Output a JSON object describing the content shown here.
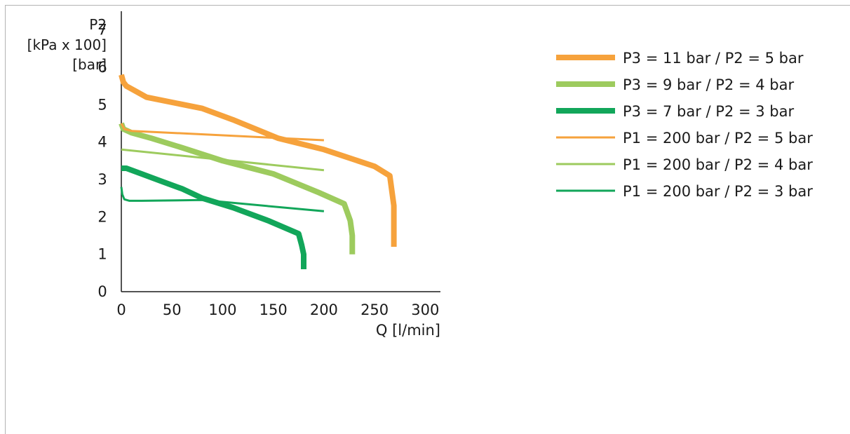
{
  "chart_data": {
    "type": "line",
    "y_label_lines": [
      "P2",
      "[kPa x 100]",
      "[bar]"
    ],
    "x_label": "Q [l/min]",
    "x_ticks": [
      0,
      50,
      100,
      150,
      200,
      250,
      300
    ],
    "y_ticks": [
      0,
      1,
      2,
      3,
      4,
      5,
      6,
      7
    ],
    "xlim": [
      0,
      315
    ],
    "ylim": [
      0,
      7.5
    ],
    "grid": false,
    "legend_position": "right",
    "series": [
      {
        "name": "P3 = 11 bar / P2 = 5 bar",
        "color": "#f6a23c",
        "weight": "thick",
        "x": [
          0,
          2,
          5,
          25,
          80,
          110,
          155,
          200,
          250,
          265,
          269,
          269
        ],
        "y": [
          5.8,
          5.6,
          5.5,
          5.2,
          4.9,
          4.6,
          4.1,
          3.8,
          3.35,
          3.1,
          2.3,
          1.2
        ]
      },
      {
        "name": "P3 = 9 bar / P2 = 4 bar",
        "color": "#9dcb5e",
        "weight": "thick",
        "x": [
          0,
          2,
          10,
          30,
          60,
          100,
          150,
          195,
          220,
          226,
          228,
          228
        ],
        "y": [
          4.5,
          4.35,
          4.25,
          4.1,
          3.85,
          3.5,
          3.15,
          2.65,
          2.35,
          1.9,
          1.5,
          1.0
        ]
      },
      {
        "name": "P3 = 7 bar / P2 = 3 bar",
        "color": "#12a65a",
        "weight": "thick",
        "x": [
          0,
          5,
          20,
          40,
          60,
          80,
          110,
          145,
          175,
          178,
          180,
          180
        ],
        "y": [
          3.3,
          3.3,
          3.15,
          2.95,
          2.75,
          2.5,
          2.25,
          1.9,
          1.55,
          1.25,
          1.0,
          0.6
        ]
      },
      {
        "name": "P1 = 200 bar / P2 = 5 bar",
        "color": "#f6a23c",
        "weight": "thin",
        "x": [
          0,
          3,
          10,
          200
        ],
        "y": [
          4.5,
          4.35,
          4.3,
          4.05
        ]
      },
      {
        "name": "P1 = 200 bar / P2 = 4 bar",
        "color": "#9dcb5e",
        "weight": "thin",
        "x": [
          0,
          200
        ],
        "y": [
          3.8,
          3.25
        ]
      },
      {
        "name": "P1 = 200 bar / P2 = 3 bar",
        "color": "#12a65a",
        "weight": "thin",
        "x": [
          0,
          1,
          3,
          8,
          20,
          80,
          200
        ],
        "y": [
          2.8,
          2.6,
          2.47,
          2.43,
          2.43,
          2.45,
          2.15
        ]
      }
    ]
  }
}
